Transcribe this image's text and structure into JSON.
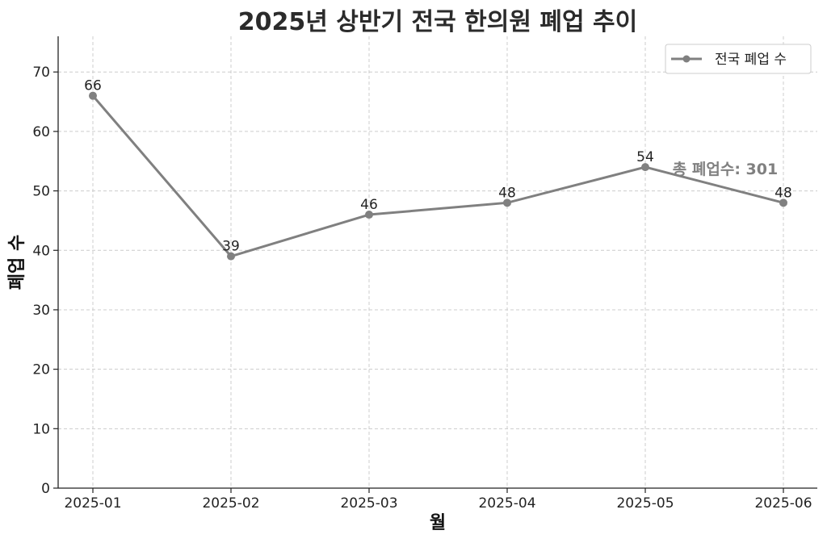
{
  "chart_data": {
    "type": "line",
    "title": "2025년 상반기 전국 한의원 폐업 추이",
    "xlabel": "월",
    "ylabel": "폐업 수",
    "categories": [
      "2025-01",
      "2025-02",
      "2025-03",
      "2025-04",
      "2025-05",
      "2025-06"
    ],
    "series": [
      {
        "name": "전국 폐업 수",
        "values": [
          66,
          39,
          46,
          48,
          54,
          48
        ],
        "color": "#808080"
      }
    ],
    "ylim": [
      0,
      76
    ],
    "yticks": [
      0,
      10,
      20,
      30,
      40,
      50,
      60,
      70
    ],
    "grid": true,
    "legend_position": "top-right",
    "data_labels": true,
    "annotation": {
      "text": "총 폐업수: 301",
      "color": "#808080"
    }
  }
}
